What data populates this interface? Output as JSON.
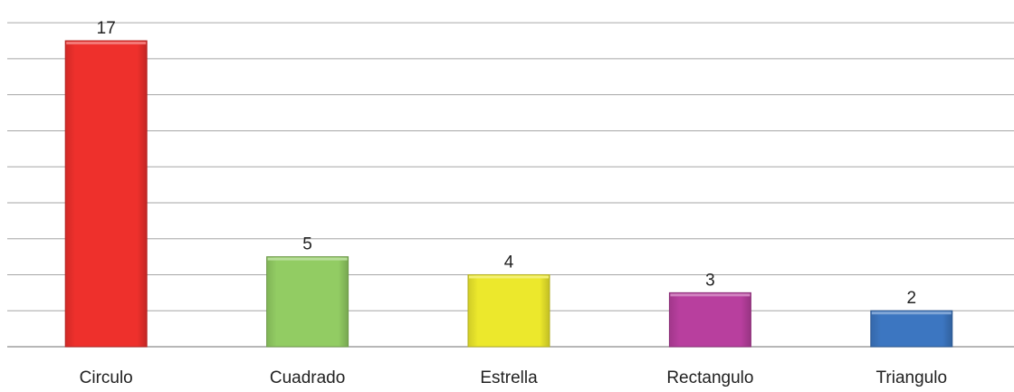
{
  "chart_data": {
    "type": "bar",
    "categories": [
      "Circulo",
      "Cuadrado",
      "Estrella",
      "Rectangulo",
      "Triangulo"
    ],
    "values": [
      17,
      5,
      4,
      3,
      2
    ],
    "colors": [
      "#ee302c",
      "#92cc63",
      "#ece82c",
      "#b83f9e",
      "#3c76c1"
    ],
    "ylim": [
      0,
      17
    ],
    "grid": true,
    "data_labels": true
  }
}
